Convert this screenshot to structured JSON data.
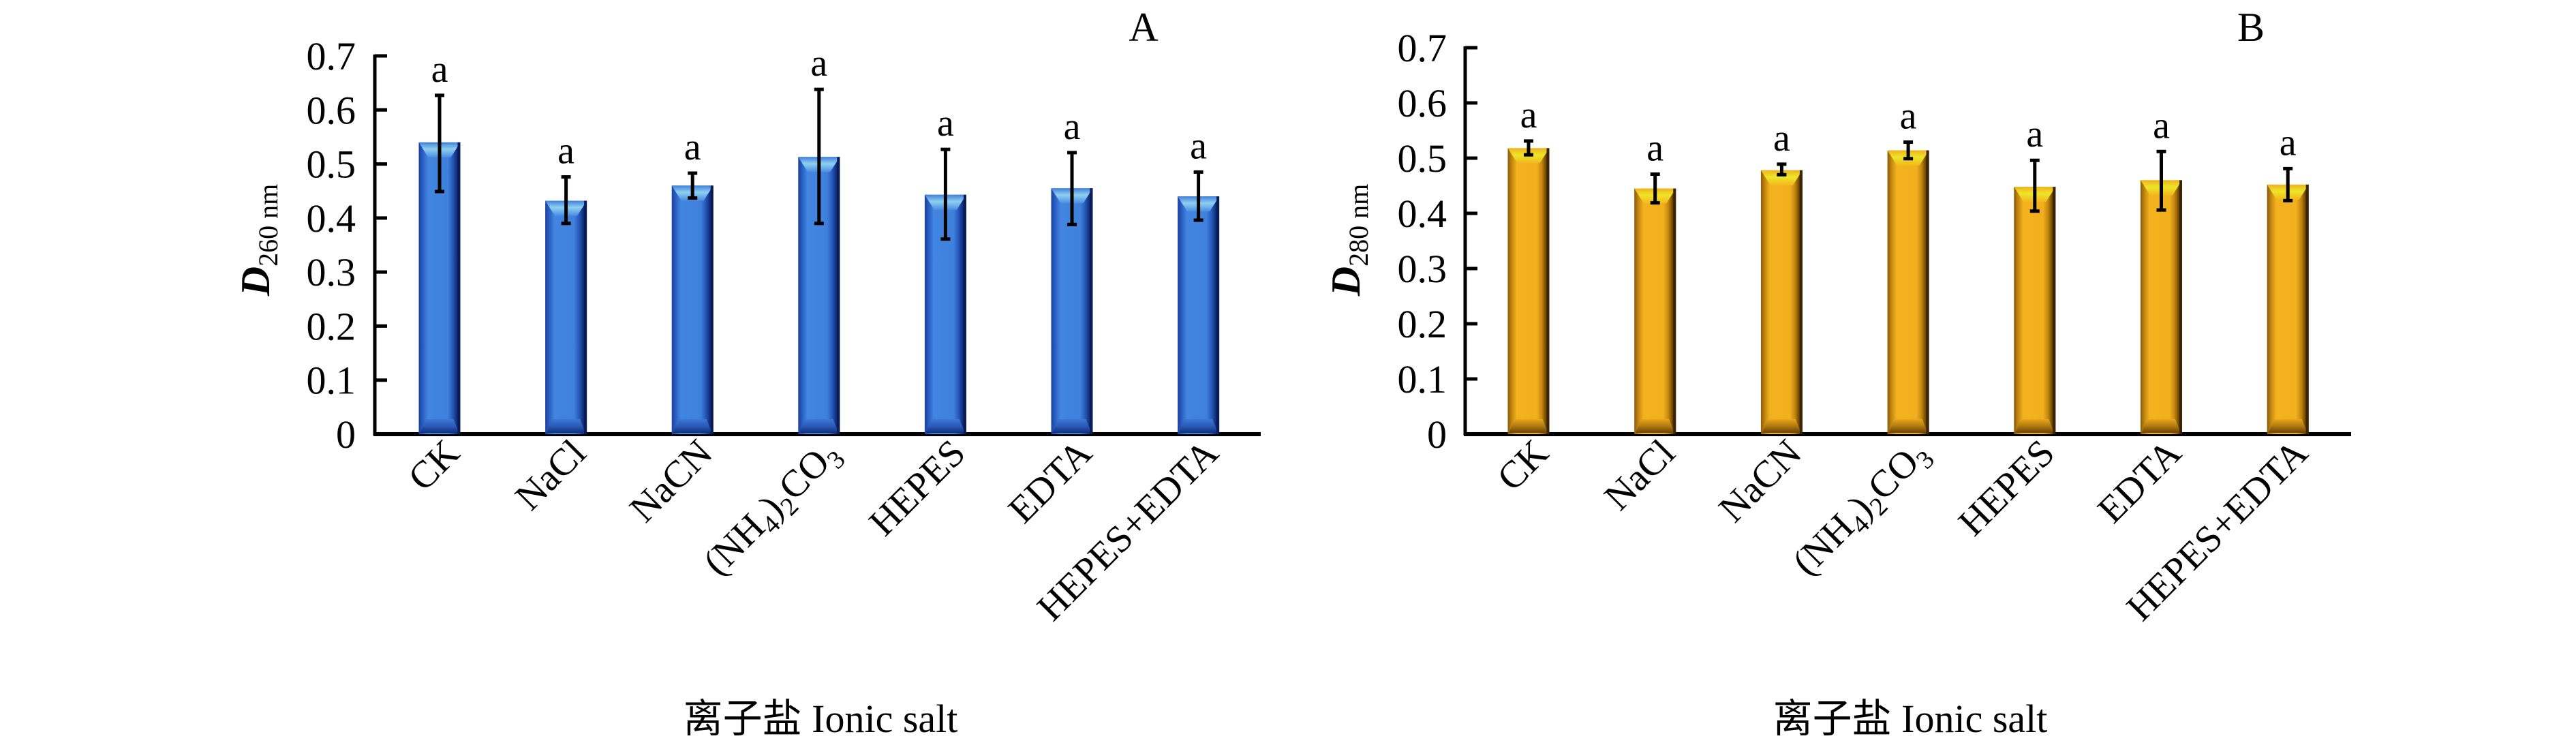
{
  "chart_data": [
    {
      "type": "bar",
      "panel_label": "A",
      "ylabel_main": "D",
      "ylabel_sub": "260 nm",
      "xlabel": "离子盐 Ionic salt",
      "ylim": [
        0,
        0.7
      ],
      "yticks": [
        "0",
        "0.1",
        "0.2",
        "0.3",
        "0.4",
        "0.5",
        "0.6",
        "0.7"
      ],
      "grid": false,
      "categories": [
        {
          "main": "CK",
          "parts": [
            {
              "t": "CK"
            }
          ]
        },
        {
          "main": "NaCl",
          "parts": [
            {
              "t": "NaCl"
            }
          ]
        },
        {
          "main": "NaCN",
          "parts": [
            {
              "t": "NaCN"
            }
          ]
        },
        {
          "main": "(NH4)2CO3",
          "parts": [
            {
              "t": "(NH"
            },
            {
              "t": "4",
              "sub": true
            },
            {
              "t": ")"
            },
            {
              "t": "2",
              "sub": true
            },
            {
              "t": "CO"
            },
            {
              "t": "3",
              "sub": true
            }
          ]
        },
        {
          "main": "HEPES",
          "parts": [
            {
              "t": "HEPES"
            }
          ]
        },
        {
          "main": "EDTA",
          "parts": [
            {
              "t": "EDTA"
            }
          ]
        },
        {
          "main": "HEPES+EDTA",
          "parts": [
            {
              "t": "HEPES+EDTA"
            }
          ]
        }
      ],
      "series": [
        {
          "name": "D260 nm",
          "color": "#3f7fdc",
          "values": [
            0.54,
            0.432,
            0.46,
            0.513,
            0.443,
            0.455,
            0.44
          ],
          "error_upper": [
            0.627,
            0.476,
            0.483,
            0.638,
            0.527,
            0.521,
            0.485
          ],
          "error_lower": [
            0.449,
            0.39,
            0.437,
            0.39,
            0.361,
            0.388,
            0.396
          ],
          "significance": [
            "a",
            "a",
            "a",
            "a",
            "a",
            "a",
            "a"
          ]
        }
      ]
    },
    {
      "type": "bar",
      "panel_label": "B",
      "ylabel_main": "D",
      "ylabel_sub": "280 nm",
      "xlabel": "离子盐 Ionic salt",
      "ylim": [
        0,
        0.7
      ],
      "yticks": [
        "0",
        "0.1",
        "0.2",
        "0.3",
        "0.4",
        "0.5",
        "0.6",
        "0.7"
      ],
      "grid": false,
      "categories": [
        {
          "main": "CK",
          "parts": [
            {
              "t": "CK"
            }
          ]
        },
        {
          "main": "NaCl",
          "parts": [
            {
              "t": "NaCl"
            }
          ]
        },
        {
          "main": "NaCN",
          "parts": [
            {
              "t": "NaCN"
            }
          ]
        },
        {
          "main": "(NH4)2CO3",
          "parts": [
            {
              "t": "(NH"
            },
            {
              "t": "4",
              "sub": true
            },
            {
              "t": ")"
            },
            {
              "t": "2",
              "sub": true
            },
            {
              "t": "CO"
            },
            {
              "t": "3",
              "sub": true
            }
          ]
        },
        {
          "main": "HEPES",
          "parts": [
            {
              "t": "HEPES"
            }
          ]
        },
        {
          "main": "EDTA",
          "parts": [
            {
              "t": "EDTA"
            }
          ]
        },
        {
          "main": "HEPES+EDTA",
          "parts": [
            {
              "t": "HEPES+EDTA"
            }
          ]
        }
      ],
      "series": [
        {
          "name": "D280 nm",
          "color": "#f2b01e",
          "values": [
            0.518,
            0.445,
            0.478,
            0.514,
            0.448,
            0.46,
            0.452
          ],
          "error_upper": [
            0.531,
            0.471,
            0.489,
            0.529,
            0.496,
            0.512,
            0.481
          ],
          "error_lower": [
            0.506,
            0.419,
            0.47,
            0.499,
            0.404,
            0.406,
            0.423
          ],
          "significance": [
            "a",
            "a",
            "a",
            "a",
            "a",
            "a",
            "a"
          ]
        }
      ]
    }
  ]
}
